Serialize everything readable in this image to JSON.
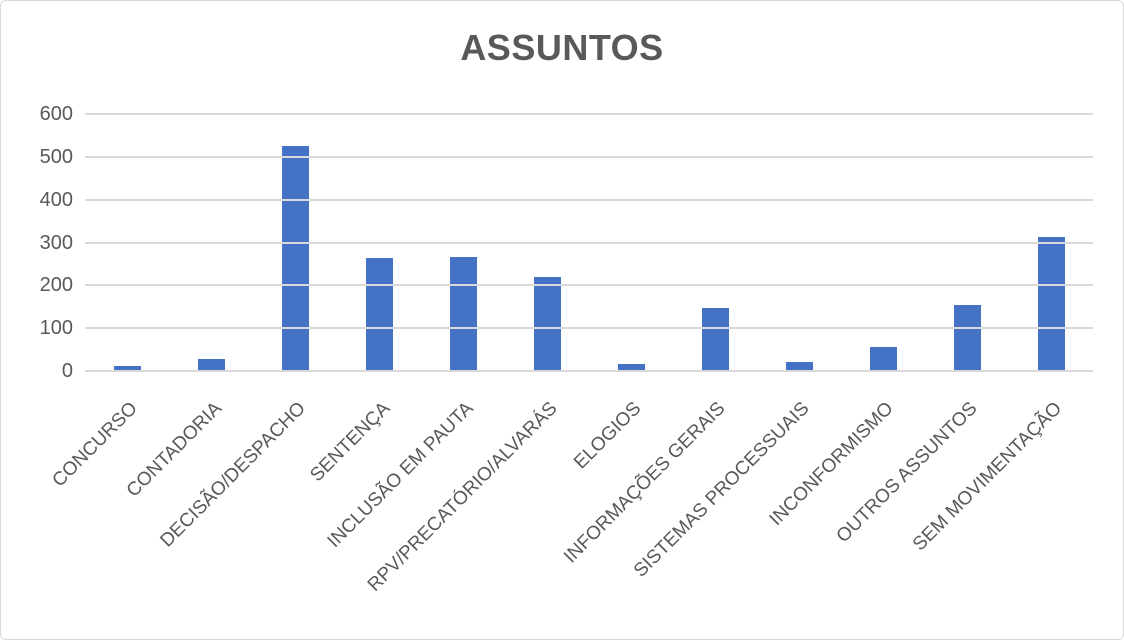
{
  "chart_data": {
    "type": "bar",
    "title": "ASSUNTOS",
    "categories": [
      "CONCURSO",
      "CONTADORIA",
      "DECISÃO/DESPACHO",
      "SENTENÇA",
      "INCLUSÃO EM PAUTA",
      "RPV/PRECATÓRIO/ALVARÁS",
      "ELOGIOS",
      "INFORMAÇÕES GERAIS",
      "SISTEMAS PROCESSUAIS",
      "INCONFORMISMO",
      "OUTROS ASSUNTOS",
      "SEM MOVIMENTAÇÃO"
    ],
    "values": [
      12,
      27,
      525,
      265,
      267,
      220,
      16,
      148,
      21,
      57,
      155,
      313
    ],
    "xlabel": "",
    "ylabel": "",
    "ylim": [
      0,
      600
    ],
    "yticks": [
      0,
      100,
      200,
      300,
      400,
      500,
      600
    ],
    "grid": true,
    "legend": false,
    "colors": {
      "bar": "#4472c4",
      "gridline": "#d9d9d9",
      "axis_text": "#595959",
      "title_text": "#595959",
      "border": "#d9d9d9"
    }
  }
}
